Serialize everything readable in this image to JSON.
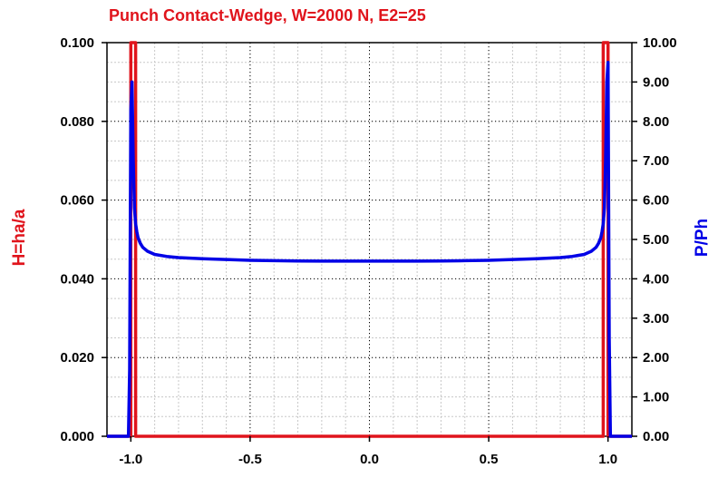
{
  "chart_data": {
    "type": "line",
    "title": "Punch Contact-Wedge, W=2000 N, E2=25",
    "xlim": [
      -1.1,
      1.1
    ],
    "x_ticks": [
      -1.0,
      -0.5,
      0.0,
      0.5,
      1.0
    ],
    "x_tick_labels": [
      "-1.0",
      "-0.5",
      "0.0",
      "0.5",
      "1.0"
    ],
    "y_left": {
      "label": "H=ha/a",
      "lim": [
        0,
        0.1
      ],
      "ticks": [
        0,
        0.02,
        0.04,
        0.06,
        0.08,
        0.1
      ],
      "tick_labels": [
        "0.000",
        "0.020",
        "0.040",
        "0.060",
        "0.080",
        "0.100"
      ],
      "color": "#e0141c"
    },
    "y_right": {
      "label": "P/Ph",
      "lim": [
        0,
        10
      ],
      "ticks": [
        0,
        1,
        2,
        3,
        4,
        5,
        6,
        7,
        8,
        9,
        10
      ],
      "tick_labels": [
        "0.00",
        "1.00",
        "2.00",
        "3.00",
        "4.00",
        "5.00",
        "6.00",
        "7.00",
        "8.00",
        "9.00",
        "10.00"
      ],
      "color": "#0000e6"
    },
    "grid": true,
    "series": [
      {
        "axis": "left",
        "color": "#e0141c",
        "x": [
          -1.1,
          -1.0,
          -1.0,
          -0.98,
          -0.98,
          -0.5,
          0.0,
          0.5,
          0.98,
          0.98,
          1.0,
          1.0,
          1.1
        ],
        "y": [
          0.0,
          0.0,
          0.1,
          0.1,
          0.0,
          0.0,
          0.0,
          0.0,
          0.0,
          0.1,
          0.1,
          0.0,
          0.0
        ]
      },
      {
        "axis": "right",
        "color": "#0000e6",
        "x": [
          -1.1,
          -1.01,
          -1.005,
          -1.0,
          -0.995,
          -0.99,
          -0.985,
          -0.98,
          -0.975,
          -0.97,
          -0.96,
          -0.95,
          -0.93,
          -0.9,
          -0.85,
          -0.8,
          -0.7,
          -0.6,
          -0.5,
          -0.4,
          -0.3,
          -0.2,
          -0.1,
          0.0,
          0.1,
          0.2,
          0.3,
          0.4,
          0.5,
          0.6,
          0.7,
          0.8,
          0.85,
          0.9,
          0.93,
          0.95,
          0.96,
          0.97,
          0.975,
          0.98,
          0.985,
          0.99,
          0.995,
          1.0,
          1.005,
          1.01,
          1.1
        ],
        "y": [
          0.0,
          0.0,
          1.7,
          8.3,
          9.0,
          7.0,
          5.8,
          5.4,
          5.2,
          5.05,
          4.9,
          4.8,
          4.7,
          4.62,
          4.57,
          4.54,
          4.51,
          4.49,
          4.47,
          4.46,
          4.455,
          4.45,
          4.45,
          4.45,
          4.45,
          4.45,
          4.455,
          4.46,
          4.47,
          4.49,
          4.51,
          4.54,
          4.57,
          4.62,
          4.7,
          4.8,
          4.9,
          5.05,
          5.2,
          5.4,
          5.8,
          7.0,
          9.0,
          9.5,
          2.5,
          0.0,
          0.0
        ]
      }
    ]
  }
}
